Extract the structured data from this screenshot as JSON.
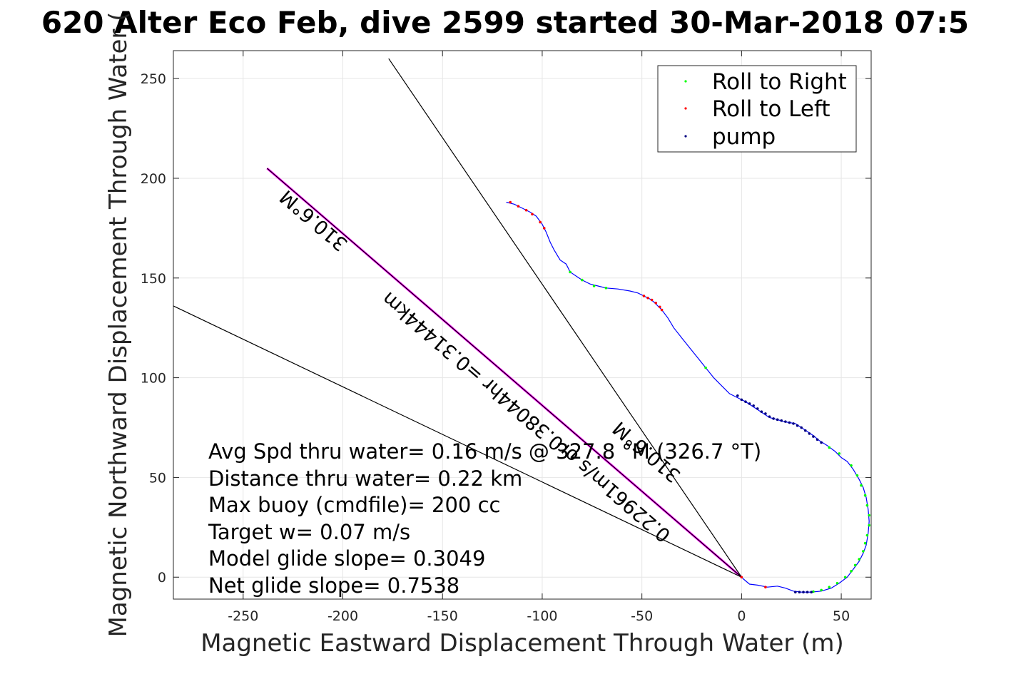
{
  "chart_data": {
    "type": "line",
    "title": "620 Alter Eco Feb, dive 2599 started 30-Mar-2018 07:5",
    "xlabel": "Magnetic Eastward Displacement Through Water (m)",
    "ylabel": "Magnetic Northward Displacement Through Water (",
    "xlim": [
      -285,
      65
    ],
    "ylim": [
      -11,
      264
    ],
    "xticks": [
      -250,
      -200,
      -150,
      -100,
      -50,
      0,
      50
    ],
    "yticks": [
      0,
      50,
      100,
      150,
      200,
      250
    ],
    "grid": true,
    "legend_position": "top-right",
    "track_color": "#0000ff",
    "track": [
      [
        -118,
        188
      ],
      [
        -114,
        187
      ],
      [
        -110,
        185
      ],
      [
        -106,
        183
      ],
      [
        -103,
        181
      ],
      [
        -100,
        177
      ],
      [
        -98,
        173
      ],
      [
        -96,
        168
      ],
      [
        -94,
        164
      ],
      [
        -91,
        159
      ],
      [
        -88,
        157
      ],
      [
        -86,
        153
      ],
      [
        -83,
        151
      ],
      [
        -80,
        149
      ],
      [
        -76,
        147
      ],
      [
        -72,
        146
      ],
      [
        -68,
        145
      ],
      [
        -62,
        144.5
      ],
      [
        -56,
        143.5
      ],
      [
        -52,
        142.5
      ],
      [
        -49,
        141
      ],
      [
        -46,
        139.5
      ],
      [
        -44,
        138
      ],
      [
        -42,
        136
      ],
      [
        -40,
        134
      ],
      [
        -37,
        130
      ],
      [
        -34,
        125
      ],
      [
        -30,
        120
      ],
      [
        -26,
        115
      ],
      [
        -22,
        110
      ],
      [
        -18,
        105
      ],
      [
        -14,
        100
      ],
      [
        -10,
        96
      ],
      [
        -6,
        92
      ],
      [
        -2,
        90
      ],
      [
        2,
        88
      ],
      [
        5,
        86
      ],
      [
        8,
        84
      ],
      [
        11,
        82
      ],
      [
        14,
        80
      ],
      [
        18,
        79
      ],
      [
        21,
        78
      ],
      [
        24,
        77.5
      ],
      [
        27,
        77
      ],
      [
        30,
        75
      ],
      [
        33,
        73
      ],
      [
        36,
        71
      ],
      [
        39,
        68.5
      ],
      [
        43,
        66
      ],
      [
        47,
        63
      ],
      [
        50,
        60
      ],
      [
        53,
        58
      ],
      [
        56,
        54
      ],
      [
        59,
        49
      ],
      [
        61,
        45
      ],
      [
        62.5,
        40
      ],
      [
        63.5,
        34
      ],
      [
        64,
        28
      ],
      [
        63.5,
        22
      ],
      [
        62.5,
        16
      ],
      [
        61,
        12
      ],
      [
        59,
        8
      ],
      [
        56,
        4
      ],
      [
        53,
        0
      ],
      [
        49,
        -3
      ],
      [
        45,
        -5.5
      ],
      [
        40,
        -7
      ],
      [
        35,
        -7.5
      ],
      [
        30,
        -7.5
      ],
      [
        26,
        -7
      ],
      [
        22,
        -5.5
      ],
      [
        18,
        -4.5
      ],
      [
        13,
        -5
      ],
      [
        8,
        -4
      ],
      [
        4,
        -3.5
      ],
      [
        1,
        -1
      ],
      [
        0,
        0
      ]
    ],
    "series": [
      {
        "name": "Roll to Right",
        "color": "#00ff00",
        "points": [
          [
            -86,
            153
          ],
          [
            -80,
            149
          ],
          [
            -74,
            146
          ],
          [
            -68,
            145
          ],
          [
            -18,
            105
          ],
          [
            44,
            65
          ],
          [
            49,
            62
          ],
          [
            55,
            56
          ],
          [
            58,
            51
          ],
          [
            60,
            46
          ],
          [
            62,
            41
          ],
          [
            63,
            36
          ],
          [
            64,
            31
          ],
          [
            64,
            26
          ],
          [
            63,
            21
          ],
          [
            62,
            17
          ],
          [
            61,
            13
          ],
          [
            59,
            9
          ],
          [
            57,
            6
          ],
          [
            55,
            3
          ],
          [
            52,
            0
          ],
          [
            48,
            -3
          ],
          [
            44,
            -5
          ],
          [
            40,
            -6.5
          ],
          [
            36,
            -7.2
          ]
        ]
      },
      {
        "name": "Roll to Left",
        "color": "#ff0000",
        "points": [
          [
            -116,
            188
          ],
          [
            -112,
            186
          ],
          [
            -108,
            184
          ],
          [
            -105,
            182
          ],
          [
            -101,
            178
          ],
          [
            -99,
            175
          ],
          [
            -49,
            141
          ],
          [
            -47,
            140
          ],
          [
            -45,
            139
          ],
          [
            -43,
            137.5
          ],
          [
            -41,
            135.5
          ],
          [
            -40,
            134
          ],
          [
            12,
            -5
          ],
          [
            0,
            0
          ]
        ]
      },
      {
        "name": "pump",
        "color": "#000080",
        "points": [
          [
            -2,
            91
          ],
          [
            0,
            89
          ],
          [
            2,
            88
          ],
          [
            4,
            87
          ],
          [
            6,
            86
          ],
          [
            8,
            84.5
          ],
          [
            10,
            83
          ],
          [
            12,
            82
          ],
          [
            14,
            80.5
          ],
          [
            16,
            79.5
          ],
          [
            18,
            79
          ],
          [
            20,
            78.5
          ],
          [
            22,
            78
          ],
          [
            24,
            77.5
          ],
          [
            26,
            77
          ],
          [
            28,
            76
          ],
          [
            30,
            75
          ],
          [
            32,
            73.5
          ],
          [
            34,
            72
          ],
          [
            36,
            70.5
          ],
          [
            38,
            69
          ],
          [
            40,
            67.5
          ],
          [
            27,
            -7.5
          ],
          [
            29,
            -7.5
          ],
          [
            31,
            -7.5
          ],
          [
            33,
            -7.5
          ],
          [
            35,
            -7.5
          ]
        ]
      }
    ],
    "lines": [
      {
        "kind": "heading",
        "color": "#ff00ff",
        "from": [
          0,
          0
        ],
        "to": [
          -238,
          205
        ]
      },
      {
        "kind": "heading-overlay",
        "color": "#000000",
        "from": [
          0,
          0
        ],
        "to": [
          -238,
          205
        ]
      },
      {
        "kind": "bound",
        "color": "#000000",
        "from": [
          0,
          0
        ],
        "to": [
          -177,
          260
        ]
      },
      {
        "kind": "bound",
        "color": "#000000",
        "from": [
          0,
          0
        ],
        "to": [
          -285,
          136
        ]
      }
    ],
    "rotated_labels": [
      {
        "text": "0.22961m/s or0.38044hr =0.31444km",
        "anchor": [
          -35,
          22
        ],
        "angle": 220.6
      },
      {
        "text": "310.6°M",
        "anchor": [
          -197,
          168
        ],
        "angle": 220.6
      },
      {
        "text": "310.6°M",
        "anchor": [
          -30,
          52
        ],
        "angle": 220.6
      }
    ],
    "annotations": [
      "Avg Spd thru water=  0.16 m/s @ 327.8 °M (326.7 °T)",
      "Distance thru water=  0.22 km",
      "Max buoy (cmdfile)= 200 cc",
      "Target w= 0.07 m/s",
      "Model glide slope= 0.3049",
      "Net glide slope= 0.7538"
    ]
  }
}
